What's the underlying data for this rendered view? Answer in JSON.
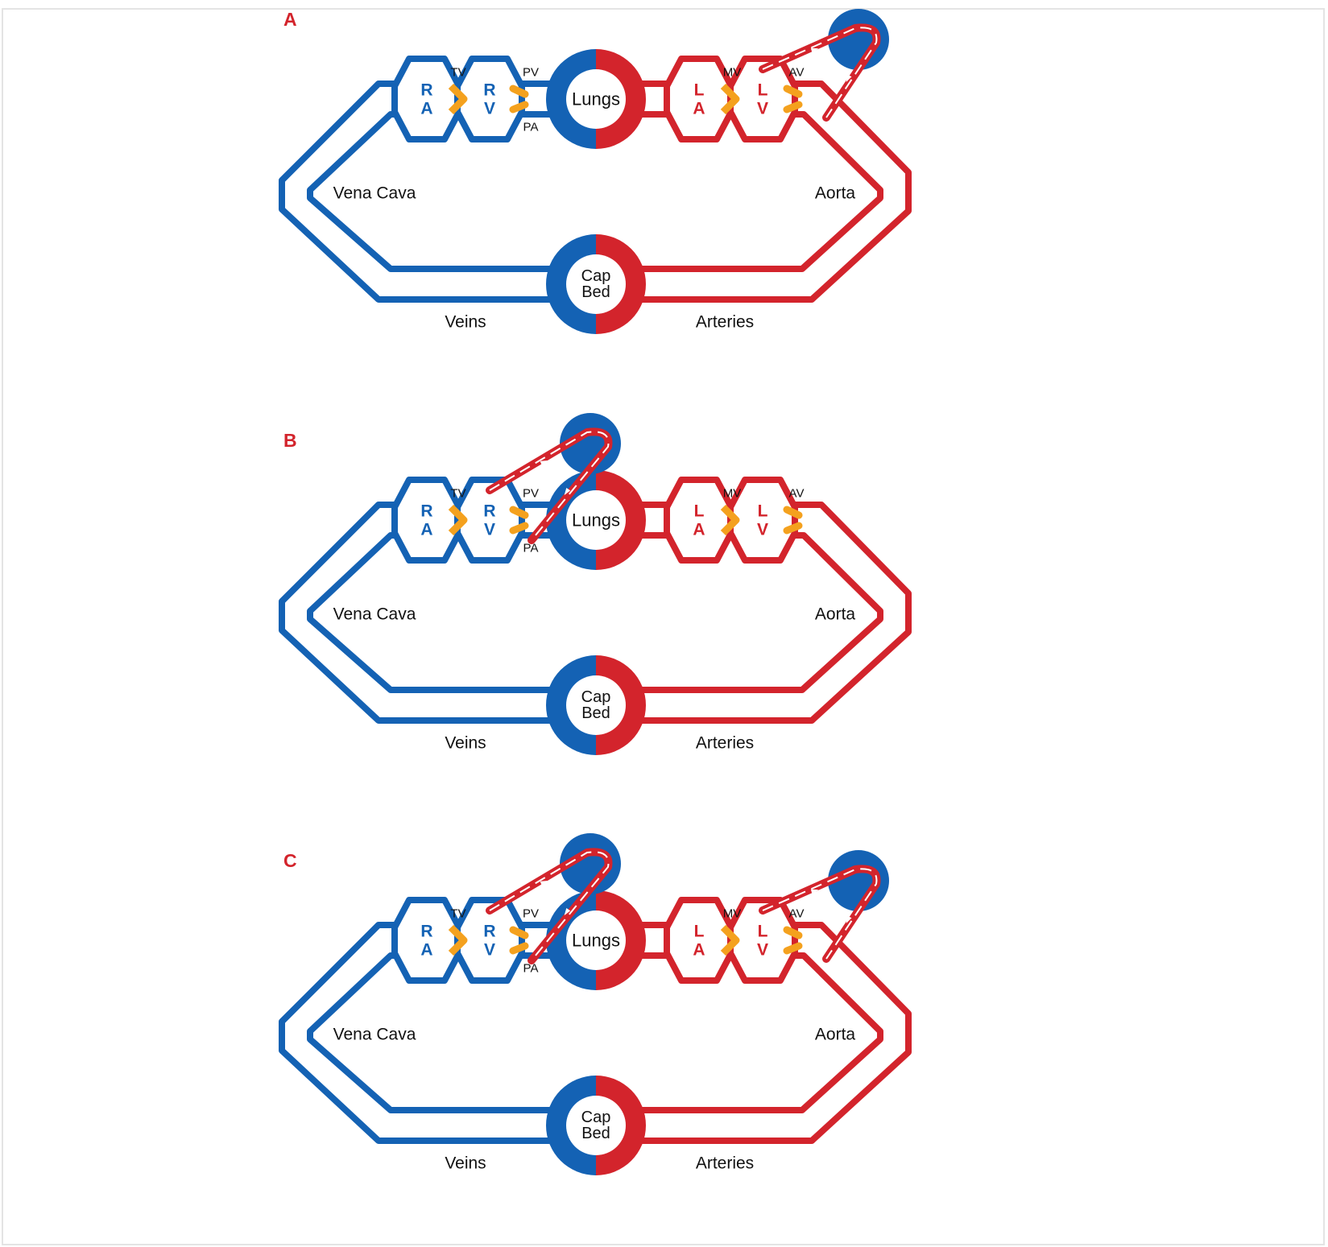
{
  "colors": {
    "venous": "#1462b4",
    "arterial": "#d3242c",
    "valve": "#f4a11e",
    "panel_letter": "#d3242c",
    "text": "#111111"
  },
  "panels": [
    {
      "letter": "A",
      "labels": {
        "ra": [
          "R",
          "A"
        ],
        "rv": [
          "R",
          "V"
        ],
        "la": [
          "L",
          "A"
        ],
        "lv": [
          "L",
          "V"
        ],
        "tv": "TV",
        "pv": "PV",
        "pa": "PA",
        "mv": "MV",
        "av": "AV",
        "lungs": "Lungs",
        "cap_bed": [
          "Cap",
          "Bed"
        ],
        "vena_cava": "Vena Cava",
        "aorta": "Aorta",
        "veins": "Veins",
        "arteries": "Arteries"
      },
      "right_heart_bypass": false,
      "left_heart_bypass": true
    },
    {
      "letter": "B",
      "labels": {
        "ra": [
          "R",
          "A"
        ],
        "rv": [
          "R",
          "V"
        ],
        "la": [
          "L",
          "A"
        ],
        "lv": [
          "L",
          "V"
        ],
        "tv": "TV",
        "pv": "PV",
        "pa": "PA",
        "mv": "MV",
        "av": "AV",
        "lungs": "Lungs",
        "cap_bed": [
          "Cap",
          "Bed"
        ],
        "vena_cava": "Vena Cava",
        "aorta": "Aorta",
        "veins": "Veins",
        "arteries": "Arteries"
      },
      "right_heart_bypass": true,
      "left_heart_bypass": false
    },
    {
      "letter": "C",
      "labels": {
        "ra": [
          "R",
          "A"
        ],
        "rv": [
          "R",
          "V"
        ],
        "la": [
          "L",
          "A"
        ],
        "lv": [
          "L",
          "V"
        ],
        "tv": "TV",
        "pv": "PV",
        "pa": "PA",
        "mv": "MV",
        "av": "AV",
        "lungs": "Lungs",
        "cap_bed": [
          "Cap",
          "Bed"
        ],
        "vena_cava": "Vena Cava",
        "aorta": "Aorta",
        "veins": "Veins",
        "arteries": "Arteries"
      },
      "right_heart_bypass": true,
      "left_heart_bypass": true
    }
  ]
}
